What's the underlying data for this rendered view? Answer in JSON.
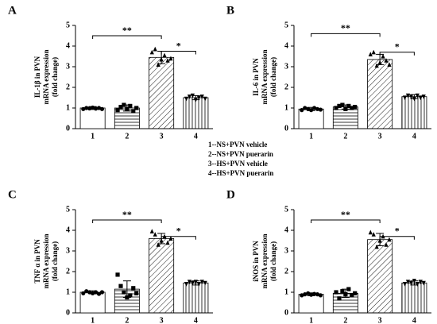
{
  "chart_data": [
    {
      "type": "bar",
      "panel": "A",
      "ylabel": [
        "IL-1β in PVN",
        "mRNA expression",
        "(fold change)"
      ],
      "categories": [
        "1",
        "2",
        "3",
        "4"
      ],
      "values": [
        1.0,
        1.0,
        3.45,
        1.5
      ],
      "errors": [
        0.07,
        0.15,
        0.3,
        0.1
      ],
      "points": [
        [
          0.95,
          1.0,
          0.98,
          1.02,
          0.97,
          1.0,
          0.95
        ],
        [
          0.9,
          1.05,
          1.15,
          0.95,
          1.1,
          0.85,
          1.0
        ],
        [
          3.7,
          3.85,
          3.1,
          3.35,
          3.55,
          3.3,
          3.4
        ],
        [
          1.45,
          1.55,
          1.6,
          1.4,
          1.5,
          1.55,
          1.45
        ]
      ],
      "patterns": [
        "none",
        "horizontal",
        "diagonal",
        "vertical"
      ],
      "markers": [
        "circle",
        "square",
        "triangle",
        "triangle-down"
      ],
      "ylim": [
        0,
        5
      ],
      "yticks": [
        0,
        1,
        2,
        3,
        4,
        5
      ],
      "annotations": [
        {
          "text": "**",
          "between": [
            "1",
            "3"
          ],
          "y": 4.5
        },
        {
          "text": "*",
          "between": [
            "3",
            "4"
          ],
          "y": 3.75
        }
      ]
    },
    {
      "type": "bar",
      "panel": "B",
      "ylabel": [
        "IL-6 in PVN",
        "mRNA expression",
        "(fold change)"
      ],
      "categories": [
        "1",
        "2",
        "3",
        "4"
      ],
      "values": [
        0.95,
        1.05,
        3.35,
        1.55
      ],
      "errors": [
        0.08,
        0.1,
        0.25,
        0.1
      ],
      "points": [
        [
          0.9,
          1.0,
          0.95,
          0.9,
          1.0,
          0.95,
          0.92
        ],
        [
          1.0,
          1.1,
          1.15,
          0.95,
          1.1,
          1.0,
          1.05
        ],
        [
          3.6,
          3.7,
          3.05,
          3.2,
          3.5,
          3.3,
          3.1
        ],
        [
          1.5,
          1.6,
          1.55,
          1.45,
          1.6,
          1.5,
          1.55
        ]
      ],
      "patterns": [
        "none",
        "horizontal",
        "diagonal",
        "vertical"
      ],
      "markers": [
        "circle",
        "square",
        "triangle",
        "triangle-down"
      ],
      "ylim": [
        0,
        5
      ],
      "yticks": [
        0,
        1,
        2,
        3,
        4,
        5
      ],
      "annotations": [
        {
          "text": "**",
          "between": [
            "1",
            "3"
          ],
          "y": 4.6
        },
        {
          "text": "*",
          "between": [
            "3",
            "4"
          ],
          "y": 3.7
        }
      ]
    },
    {
      "type": "bar",
      "panel": "C",
      "ylabel": [
        "TNF α in PVN",
        "mRNA expression",
        "(fold change)"
      ],
      "categories": [
        "1",
        "2",
        "3",
        "4"
      ],
      "values": [
        1.0,
        1.15,
        3.6,
        1.45
      ],
      "errors": [
        0.07,
        0.4,
        0.25,
        0.1
      ],
      "points": [
        [
          0.95,
          1.05,
          1.0,
          0.95,
          1.0,
          0.92,
          1.0
        ],
        [
          1.85,
          1.3,
          1.0,
          0.75,
          0.85,
          1.2,
          0.95
        ],
        [
          3.95,
          3.8,
          3.3,
          3.5,
          3.7,
          3.4,
          3.6
        ],
        [
          1.4,
          1.5,
          1.45,
          1.5,
          1.4,
          1.5,
          1.45
        ]
      ],
      "patterns": [
        "none",
        "horizontal",
        "diagonal",
        "vertical"
      ],
      "markers": [
        "circle",
        "square",
        "triangle",
        "triangle-down"
      ],
      "ylim": [
        0,
        5
      ],
      "yticks": [
        0,
        1,
        2,
        3,
        4,
        5
      ],
      "annotations": [
        {
          "text": "**",
          "between": [
            "1",
            "3"
          ],
          "y": 4.5
        },
        {
          "text": "*",
          "between": [
            "3",
            "4"
          ],
          "y": 3.7
        }
      ]
    },
    {
      "type": "bar",
      "panel": "D",
      "ylabel": [
        "iNOS in PVN",
        "mRNA expression",
        "(fold change)"
      ],
      "categories": [
        "1",
        "2",
        "3",
        "4"
      ],
      "values": [
        0.9,
        0.95,
        3.55,
        1.45
      ],
      "errors": [
        0.07,
        0.2,
        0.3,
        0.1
      ],
      "points": [
        [
          0.85,
          0.9,
          0.95,
          0.88,
          0.92,
          0.9,
          0.85
        ],
        [
          1.0,
          0.7,
          1.05,
          0.9,
          1.15,
          0.85,
          0.95
        ],
        [
          3.9,
          3.8,
          3.2,
          3.5,
          3.7,
          3.3,
          3.55
        ],
        [
          1.4,
          1.5,
          1.45,
          1.55,
          1.4,
          1.5,
          1.45
        ]
      ],
      "patterns": [
        "none",
        "horizontal",
        "diagonal",
        "vertical"
      ],
      "markers": [
        "circle",
        "square",
        "triangle",
        "triangle-down"
      ],
      "ylim": [
        0,
        5
      ],
      "yticks": [
        0,
        1,
        2,
        3,
        4,
        5
      ],
      "annotations": [
        {
          "text": "**",
          "between": [
            "1",
            "3"
          ],
          "y": 4.5
        },
        {
          "text": "*",
          "between": [
            "3",
            "4"
          ],
          "y": 3.7
        }
      ]
    }
  ],
  "legend": [
    "1--NS+PVN vehicle",
    "2--NS+PVN puerarin",
    "3--HS+PVN vehicle",
    "4--HS+PVN puerarin"
  ]
}
